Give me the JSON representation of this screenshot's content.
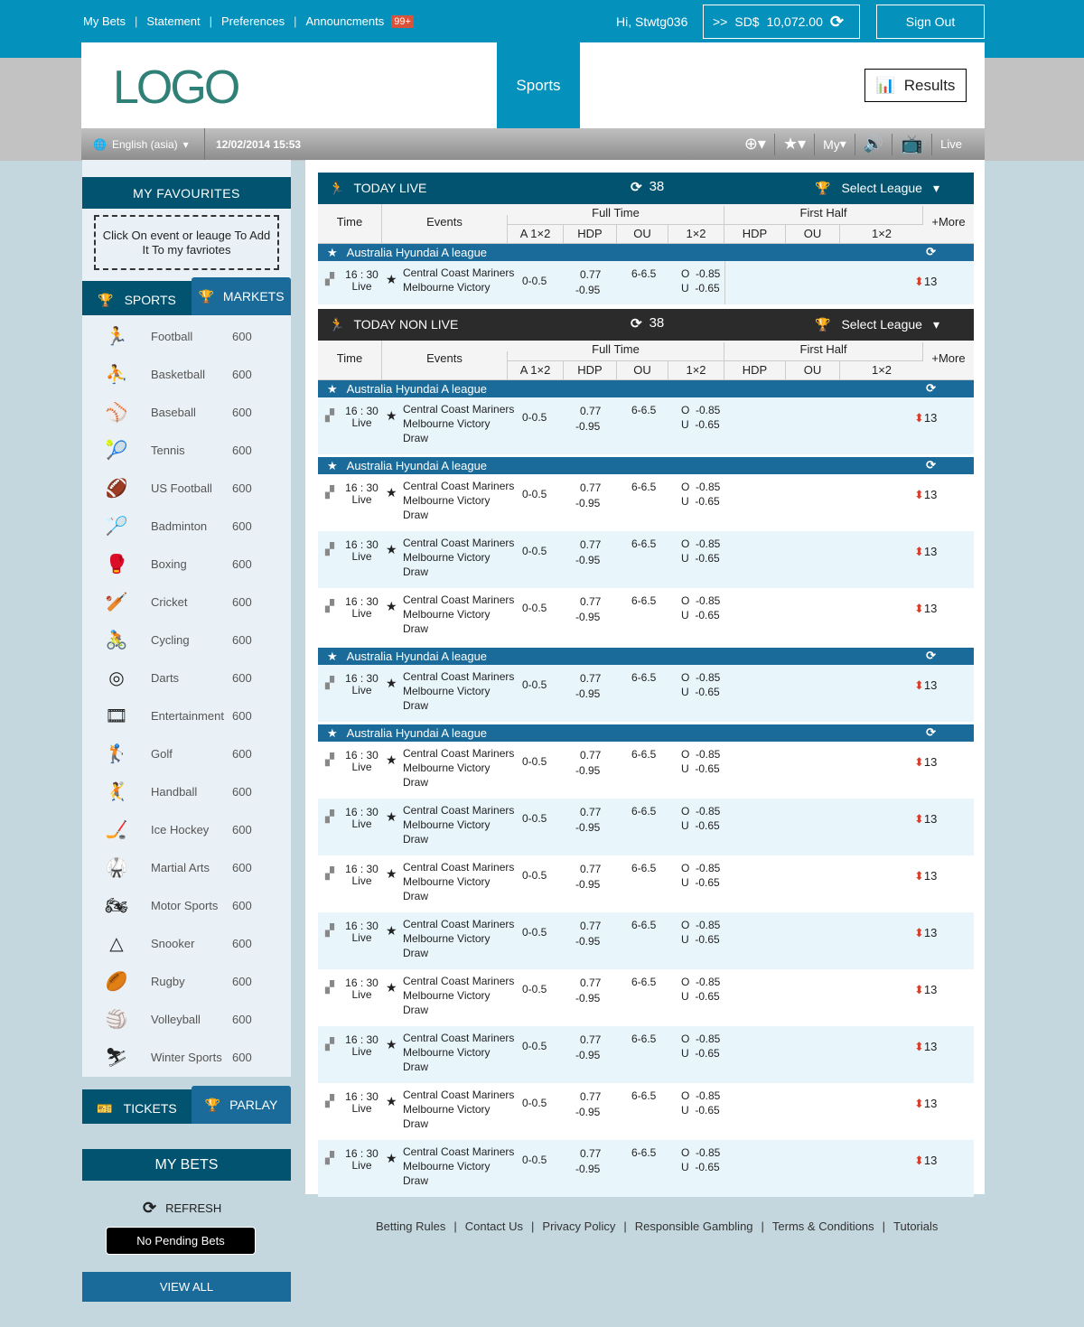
{
  "topbar": {
    "links": [
      "My Bets",
      "Statement",
      "Preferences",
      "Announcments"
    ],
    "badge": "99+",
    "greeting": "Hi, Stwtg036",
    "balance_prefix": ">>",
    "currency": "SD$",
    "balance": "10,072.00",
    "signout": "Sign Out"
  },
  "header": {
    "logo": "LOGO",
    "sports_tab": "Sports",
    "results": "Results"
  },
  "toolbar": {
    "language": "English (asia)",
    "datetime": "12/02/2014  15:53",
    "my": "My",
    "live": "Live"
  },
  "sidebar": {
    "favourites_title": "MY  FAVOURITES",
    "favourites_hint": "Click On event or leauge To Add It To my favriotes",
    "tab_sports": "SPORTS",
    "tab_markets": "MARKETS",
    "sports": [
      {
        "name": "Football",
        "count": "600",
        "icon": "🏃"
      },
      {
        "name": "Basketball",
        "count": "600",
        "icon": "⛹"
      },
      {
        "name": "Baseball",
        "count": "600",
        "icon": "⚾"
      },
      {
        "name": "Tennis",
        "count": "600",
        "icon": "🎾"
      },
      {
        "name": "US Football",
        "count": "600",
        "icon": "🏈"
      },
      {
        "name": "Badminton",
        "count": "600",
        "icon": "🏸"
      },
      {
        "name": "Boxing",
        "count": "600",
        "icon": "🥊"
      },
      {
        "name": "Cricket",
        "count": "600",
        "icon": "🏏"
      },
      {
        "name": "Cycling",
        "count": "600",
        "icon": "🚴"
      },
      {
        "name": "Darts",
        "count": "600",
        "icon": "◎"
      },
      {
        "name": "Entertainment",
        "count": "600",
        "icon": "🎞"
      },
      {
        "name": "Golf",
        "count": "600",
        "icon": "🏌"
      },
      {
        "name": "Handball",
        "count": "600",
        "icon": "🤾"
      },
      {
        "name": "Ice Hockey",
        "count": "600",
        "icon": "🏒"
      },
      {
        "name": "Martial Arts",
        "count": "600",
        "icon": "🥋"
      },
      {
        "name": "Motor Sports",
        "count": "600",
        "icon": "🏍"
      },
      {
        "name": "Snooker",
        "count": "600",
        "icon": "△"
      },
      {
        "name": "Rugby",
        "count": "600",
        "icon": "🏉"
      },
      {
        "name": "Volleyball",
        "count": "600",
        "icon": "🏐"
      },
      {
        "name": "Winter Sports",
        "count": "600",
        "icon": "⛷"
      }
    ],
    "tab_tickets": "TICKETS",
    "tab_parlay": "PARLAY",
    "mybets_title": "MY BETS",
    "refresh": "REFRESH",
    "no_pending": "No Pending Bets",
    "view_all": "VIEW ALL"
  },
  "columns": {
    "time": "Time",
    "events": "Events",
    "full_time": "Full Time",
    "first_half": "First Half",
    "more": "+More",
    "sub": [
      "A 1×2",
      "HDP",
      "OU",
      "1×2",
      "HDP",
      "OU",
      "1×2"
    ]
  },
  "live": {
    "title": "TODAY LIVE",
    "count": "38",
    "select": "Select League",
    "color": "#02536f",
    "leagues": [
      {
        "name": "Australia Hyundai A league",
        "matches": 1,
        "draw": false
      }
    ]
  },
  "nonlive": {
    "title": "TODAY NON LIVE",
    "count": "38",
    "select": "Select League",
    "color": "#2b2b2b",
    "leagues": [
      {
        "name": "Australia Hyundai A league",
        "matches": 1,
        "draw": true
      },
      {
        "name": "Australia Hyundai A league",
        "matches": 3,
        "draw": true
      },
      {
        "name": "Australia Hyundai A league",
        "matches": 1,
        "draw": true
      },
      {
        "name": "Australia Hyundai A league",
        "matches": 8,
        "draw": true
      }
    ]
  },
  "match": {
    "time": "16 : 30",
    "status": "Live",
    "home": "Central Coast Mariners",
    "away": "Melbourne Victory",
    "draw": "Draw",
    "a1x2": "0-0.5",
    "hdp_home": "0.77",
    "hdp_away": "-0.95",
    "ou": "6-6.5",
    "over": "O  -0.85",
    "under": "U  -0.65",
    "more": "13"
  },
  "footer": [
    "Betting Rules",
    "Contact Us",
    "Privacy Policy",
    "Responsible Gambling",
    "Terms & Conditions",
    "Tutorials"
  ]
}
